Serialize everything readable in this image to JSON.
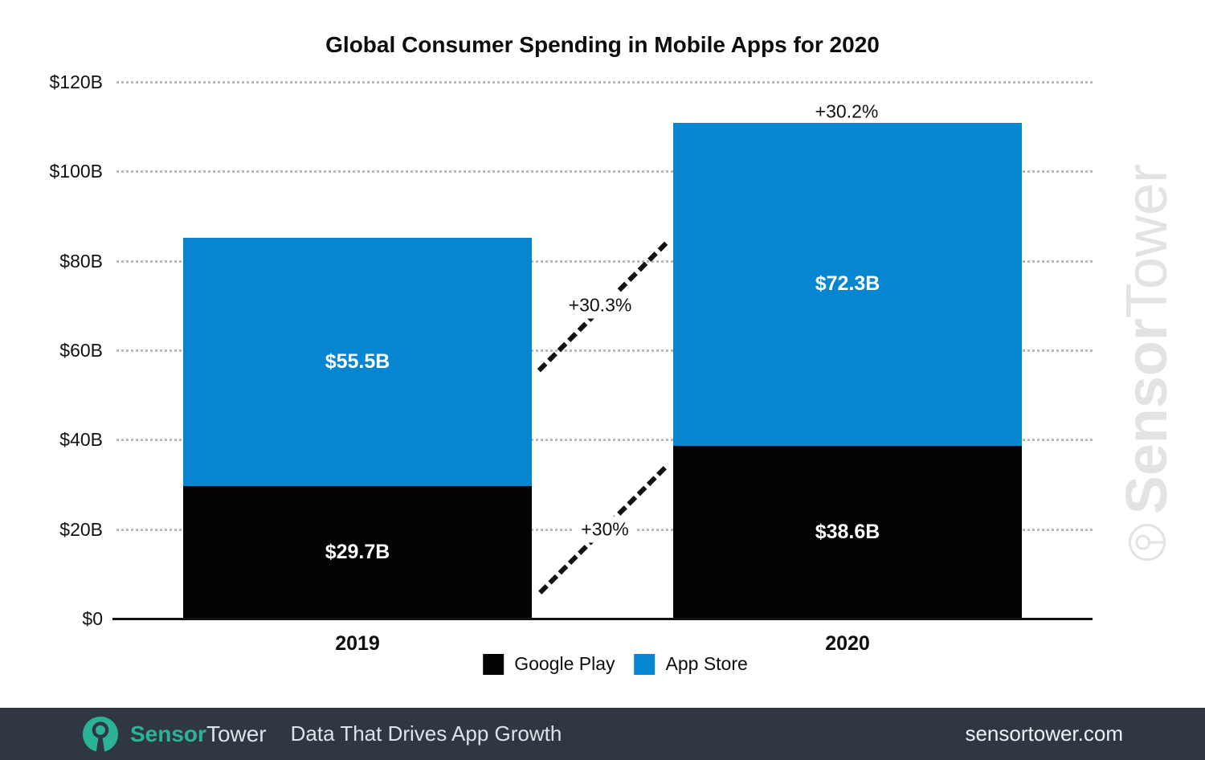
{
  "title": "Global Consumer Spending in Mobile Apps for 2020",
  "chart_data": {
    "type": "bar",
    "stacked": true,
    "title": "Global Consumer Spending in Mobile Apps for 2020",
    "categories": [
      "2019",
      "2020"
    ],
    "series": [
      {
        "name": "Google Play",
        "color": "#030303",
        "values": [
          29.7,
          38.6
        ],
        "value_labels": [
          "$29.7B",
          "$38.6B"
        ]
      },
      {
        "name": "App Store",
        "color": "#0685d1",
        "values": [
          55.5,
          72.3
        ],
        "value_labels": [
          "$55.5B",
          "$72.3B"
        ]
      }
    ],
    "totals": [
      85.2,
      110.9
    ],
    "growth": {
      "app_store": "+30.3%",
      "google_play": "+30%",
      "total": "+30.2%"
    },
    "ylim": [
      0,
      120
    ],
    "yticks": [
      {
        "value": 0,
        "label": "$0"
      },
      {
        "value": 20,
        "label": "$20B"
      },
      {
        "value": 40,
        "label": "$40B"
      },
      {
        "value": 60,
        "label": "$60B"
      },
      {
        "value": 80,
        "label": "$80B"
      },
      {
        "value": 100,
        "label": "$100B"
      },
      {
        "value": 120,
        "label": "$120B"
      }
    ],
    "grid": "dotted horizontal",
    "legend_position": "bottom"
  },
  "watermark": {
    "brand_bold": "Sensor",
    "brand_light": "Tower",
    "color": "#e3e3e3"
  },
  "footer": {
    "brand_bold": "Sensor",
    "brand_light": "Tower",
    "tagline": "Data That Drives App Growth",
    "url": "sensortower.com",
    "background": "#2e3742",
    "accent": "#2bb297"
  }
}
